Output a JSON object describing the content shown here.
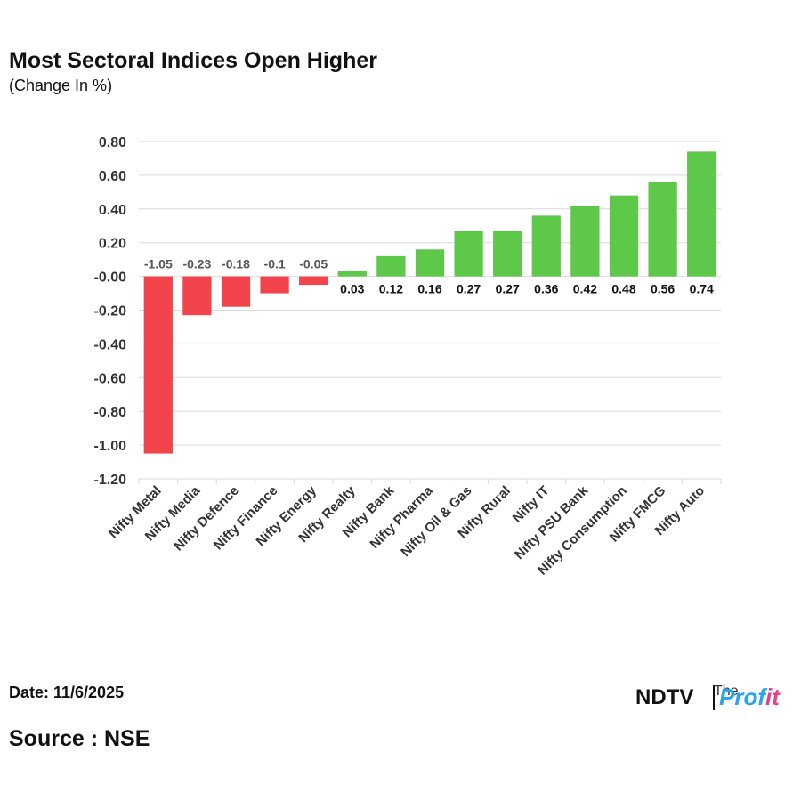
{
  "header": {
    "title": "Most Sectoral Indices Open Higher",
    "subtitle": "(Change In %)"
  },
  "footer": {
    "date": "Date: 11/6/2025",
    "source": "Source : NSE"
  },
  "brand": {
    "ndtv": "NDTV",
    "tag": "The",
    "profit_part1": "Prof",
    "profit_part2": "it"
  },
  "colors": {
    "positive": "#5ec84a",
    "negative": "#f2444a",
    "grid": "#d9d9d9"
  },
  "chart_data": {
    "type": "bar",
    "categories": [
      "Nifty Metal",
      "Nifty Media",
      "Nifty Defence",
      "Nifty Finance",
      "Nifty Energy",
      "Nifty Realty",
      "Nifty Bank",
      "Nifty Pharma",
      "Nifty Oil & Gas",
      "Nifty Rural",
      "Nifty IT",
      "Nifty PSU Bank",
      "Nifty Consumption",
      "Nifty FMCG",
      "Nifty Auto"
    ],
    "values": [
      -1.05,
      -0.23,
      -0.18,
      -0.1,
      -0.05,
      0.03,
      0.12,
      0.16,
      0.27,
      0.27,
      0.36,
      0.42,
      0.48,
      0.56,
      0.74
    ],
    "data_labels": [
      "-1.05",
      "-0.23",
      "-0.18",
      "-0.1",
      "-0.05",
      "0.03",
      "0.12",
      "0.16",
      "0.27",
      "0.27",
      "0.36",
      "0.42",
      "0.48",
      "0.56",
      "0.74"
    ],
    "ylim": [
      -1.2,
      0.8
    ],
    "yticks": [
      "0.80",
      "0.60",
      "0.40",
      "0.20",
      "-0.00",
      "-0.20",
      "-0.40",
      "-0.60",
      "-0.80",
      "-1.00",
      "-1.20"
    ],
    "ytick_values": [
      0.8,
      0.6,
      0.4,
      0.2,
      0,
      -0.2,
      -0.4,
      -0.6,
      -0.8,
      -1.0,
      -1.2
    ],
    "grid": true
  }
}
